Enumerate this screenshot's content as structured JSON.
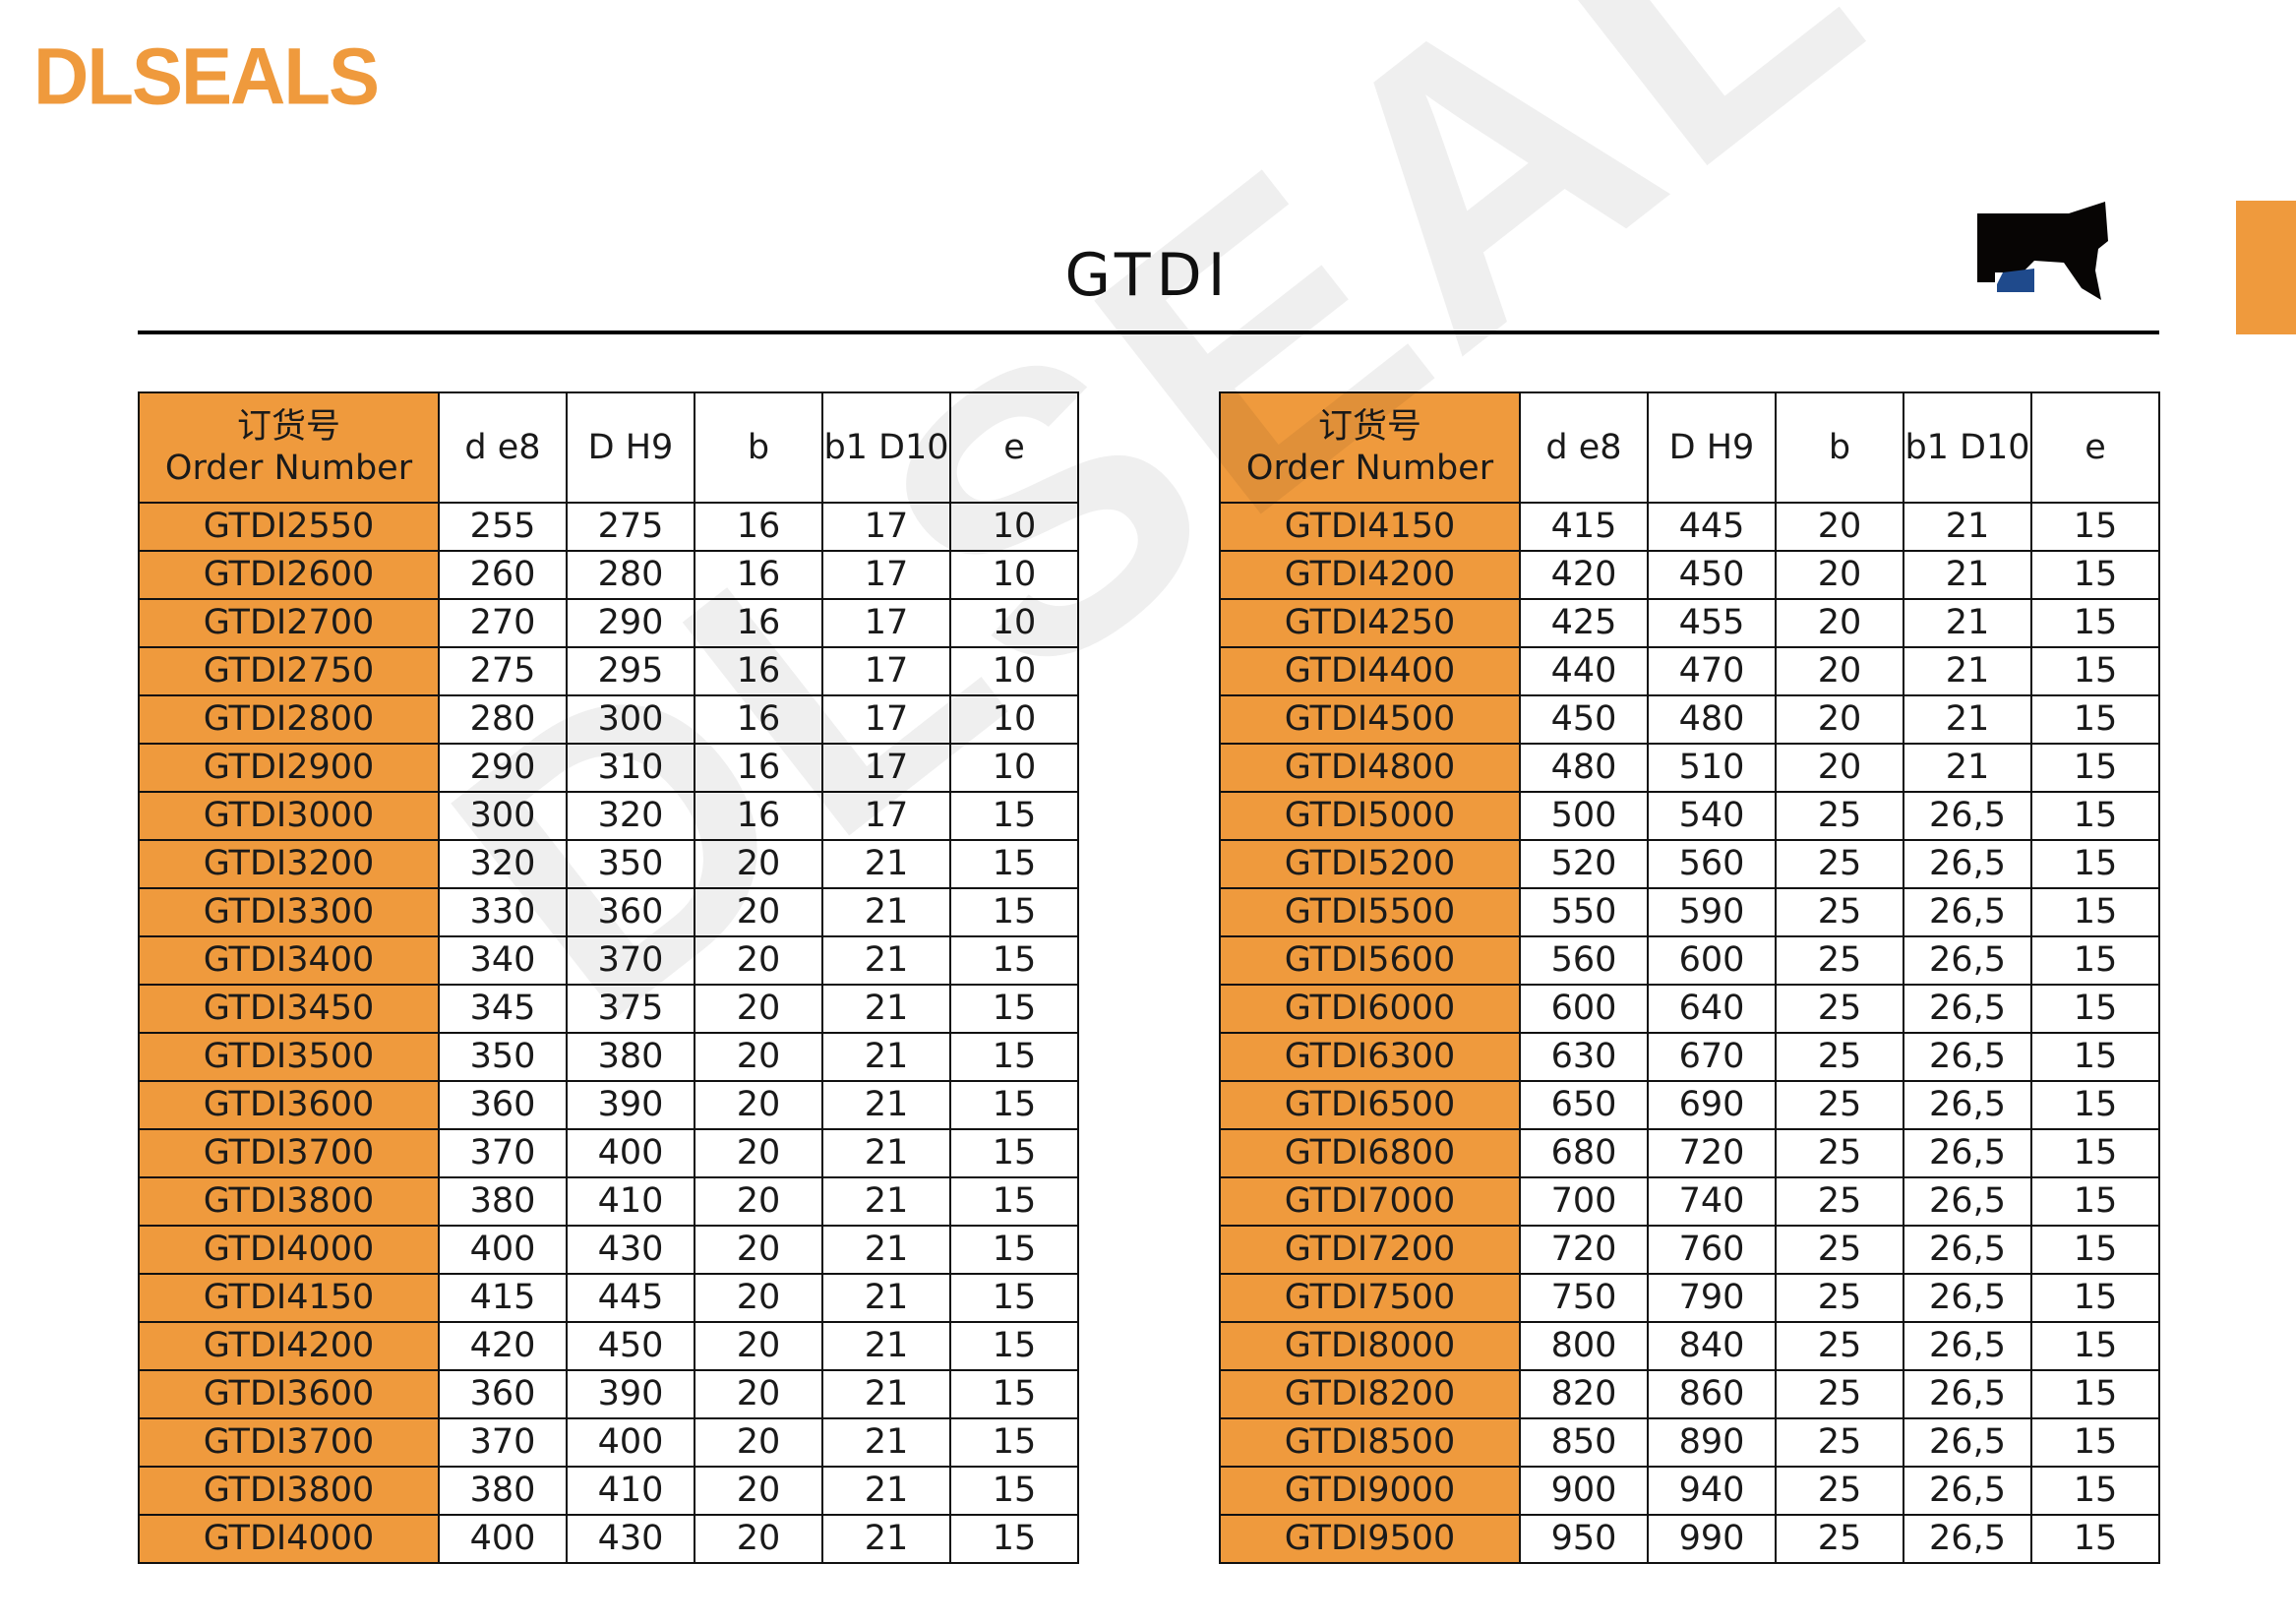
{
  "brand": {
    "logo": "DLSEALS",
    "accent": "#EF9A3D"
  },
  "title": "GTDI",
  "profile_icon": "seal-profile-icon",
  "headers": {
    "order_cn": "订货号",
    "order_en": "Order Number",
    "cols": [
      "d e8",
      "D H9",
      "b",
      "b1 D10",
      "e"
    ]
  },
  "tables": [
    {
      "rows": [
        [
          "GTDI2550",
          "255",
          "275",
          "16",
          "17",
          "10"
        ],
        [
          "GTDI2600",
          "260",
          "280",
          "16",
          "17",
          "10"
        ],
        [
          "GTDI2700",
          "270",
          "290",
          "16",
          "17",
          "10"
        ],
        [
          "GTDI2750",
          "275",
          "295",
          "16",
          "17",
          "10"
        ],
        [
          "GTDI2800",
          "280",
          "300",
          "16",
          "17",
          "10"
        ],
        [
          "GTDI2900",
          "290",
          "310",
          "16",
          "17",
          "10"
        ],
        [
          "GTDI3000",
          "300",
          "320",
          "16",
          "17",
          "15"
        ],
        [
          "GTDI3200",
          "320",
          "350",
          "20",
          "21",
          "15"
        ],
        [
          "GTDI3300",
          "330",
          "360",
          "20",
          "21",
          "15"
        ],
        [
          "GTDI3400",
          "340",
          "370",
          "20",
          "21",
          "15"
        ],
        [
          "GTDI3450",
          "345",
          "375",
          "20",
          "21",
          "15"
        ],
        [
          "GTDI3500",
          "350",
          "380",
          "20",
          "21",
          "15"
        ],
        [
          "GTDI3600",
          "360",
          "390",
          "20",
          "21",
          "15"
        ],
        [
          "GTDI3700",
          "370",
          "400",
          "20",
          "21",
          "15"
        ],
        [
          "GTDI3800",
          "380",
          "410",
          "20",
          "21",
          "15"
        ],
        [
          "GTDI4000",
          "400",
          "430",
          "20",
          "21",
          "15"
        ],
        [
          "GTDI4150",
          "415",
          "445",
          "20",
          "21",
          "15"
        ],
        [
          "GTDI4200",
          "420",
          "450",
          "20",
          "21",
          "15"
        ],
        [
          "GTDI3600",
          "360",
          "390",
          "20",
          "21",
          "15"
        ],
        [
          "GTDI3700",
          "370",
          "400",
          "20",
          "21",
          "15"
        ],
        [
          "GTDI3800",
          "380",
          "410",
          "20",
          "21",
          "15"
        ],
        [
          "GTDI4000",
          "400",
          "430",
          "20",
          "21",
          "15"
        ]
      ]
    },
    {
      "rows": [
        [
          "GTDI4150",
          "415",
          "445",
          "20",
          "21",
          "15"
        ],
        [
          "GTDI4200",
          "420",
          "450",
          "20",
          "21",
          "15"
        ],
        [
          "GTDI4250",
          "425",
          "455",
          "20",
          "21",
          "15"
        ],
        [
          "GTDI4400",
          "440",
          "470",
          "20",
          "21",
          "15"
        ],
        [
          "GTDI4500",
          "450",
          "480",
          "20",
          "21",
          "15"
        ],
        [
          "GTDI4800",
          "480",
          "510",
          "20",
          "21",
          "15"
        ],
        [
          "GTDI5000",
          "500",
          "540",
          "25",
          "26,5",
          "15"
        ],
        [
          "GTDI5200",
          "520",
          "560",
          "25",
          "26,5",
          "15"
        ],
        [
          "GTDI5500",
          "550",
          "590",
          "25",
          "26,5",
          "15"
        ],
        [
          "GTDI5600",
          "560",
          "600",
          "25",
          "26,5",
          "15"
        ],
        [
          "GTDI6000",
          "600",
          "640",
          "25",
          "26,5",
          "15"
        ],
        [
          "GTDI6300",
          "630",
          "670",
          "25",
          "26,5",
          "15"
        ],
        [
          "GTDI6500",
          "650",
          "690",
          "25",
          "26,5",
          "15"
        ],
        [
          "GTDI6800",
          "680",
          "720",
          "25",
          "26,5",
          "15"
        ],
        [
          "GTDI7000",
          "700",
          "740",
          "25",
          "26,5",
          "15"
        ],
        [
          "GTDI7200",
          "720",
          "760",
          "25",
          "26,5",
          "15"
        ],
        [
          "GTDI7500",
          "750",
          "790",
          "25",
          "26,5",
          "15"
        ],
        [
          "GTDI8000",
          "800",
          "840",
          "25",
          "26,5",
          "15"
        ],
        [
          "GTDI8200",
          "820",
          "860",
          "25",
          "26,5",
          "15"
        ],
        [
          "GTDI8500",
          "850",
          "890",
          "25",
          "26,5",
          "15"
        ],
        [
          "GTDI9000",
          "900",
          "940",
          "25",
          "26,5",
          "15"
        ],
        [
          "GTDI9500",
          "950",
          "990",
          "25",
          "26,5",
          "15"
        ]
      ]
    }
  ]
}
